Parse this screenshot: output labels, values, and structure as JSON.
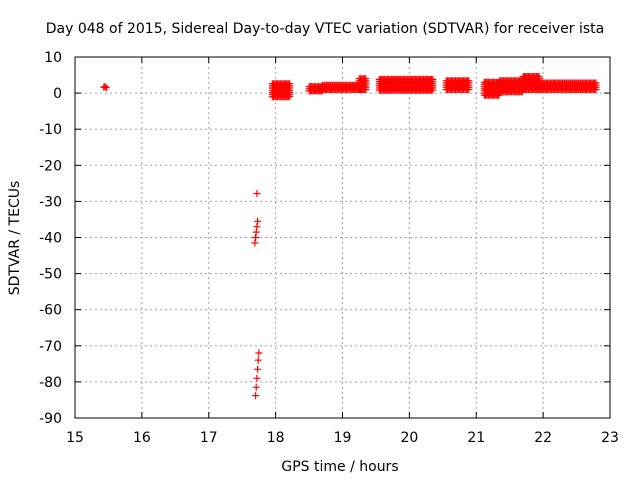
{
  "chart_data": {
    "type": "scatter",
    "title": "Day 048 of 2015, Sidereal Day-to-day VTEC variation (SDTVAR) for receiver ista",
    "xlabel": "GPS time / hours",
    "ylabel": "SDTVAR / TECUs",
    "xlim": [
      15,
      23
    ],
    "ylim": [
      -90,
      10
    ],
    "xticks": [
      "15",
      "16",
      "17",
      "18",
      "19",
      "20",
      "21",
      "22",
      "23"
    ],
    "yticks": [
      "10",
      "0",
      "-10",
      "-20",
      "-30",
      "-40",
      "-50",
      "-60",
      "-70",
      "-80",
      "-90"
    ],
    "grid": true,
    "marker": "+",
    "series_color": "#ff0000",
    "series": [
      {
        "name": "SDTVAR",
        "points": [
          [
            15.43,
            1.6
          ],
          [
            15.45,
            1.8
          ],
          [
            15.47,
            1.5
          ],
          [
            17.72,
            -27.8
          ],
          [
            17.73,
            -35.5
          ],
          [
            17.72,
            -37.0
          ],
          [
            17.71,
            -38.5
          ],
          [
            17.7,
            -40.0
          ],
          [
            17.69,
            -41.5
          ],
          [
            17.75,
            -72.0
          ],
          [
            17.74,
            -74.0
          ],
          [
            17.73,
            -76.5
          ],
          [
            17.72,
            -79.0
          ],
          [
            17.71,
            -81.5
          ],
          [
            17.7,
            -83.8
          ]
        ],
        "bands": [
          {
            "x_start": 17.95,
            "x_end": 18.22,
            "y_low": -1.0,
            "y_high": 2.8
          },
          {
            "x_start": 18.5,
            "x_end": 18.7,
            "y_low": 0.6,
            "y_high": 2.2
          },
          {
            "x_start": 18.7,
            "x_end": 19.3,
            "y_low": 1.0,
            "y_high": 2.4
          },
          {
            "x_start": 19.25,
            "x_end": 19.35,
            "y_low": 1.0,
            "y_high": 4.2
          },
          {
            "x_start": 19.55,
            "x_end": 20.35,
            "y_low": 0.8,
            "y_high": 4.2
          },
          {
            "x_start": 20.55,
            "x_end": 20.9,
            "y_low": 1.0,
            "y_high": 3.8
          },
          {
            "x_start": 21.12,
            "x_end": 21.35,
            "y_low": -0.6,
            "y_high": 3.2
          },
          {
            "x_start": 21.35,
            "x_end": 21.7,
            "y_low": 0.4,
            "y_high": 3.6
          },
          {
            "x_start": 21.7,
            "x_end": 21.95,
            "y_low": 1.0,
            "y_high": 5.0
          },
          {
            "x_start": 21.95,
            "x_end": 22.8,
            "y_low": 1.0,
            "y_high": 3.2
          }
        ]
      }
    ]
  }
}
